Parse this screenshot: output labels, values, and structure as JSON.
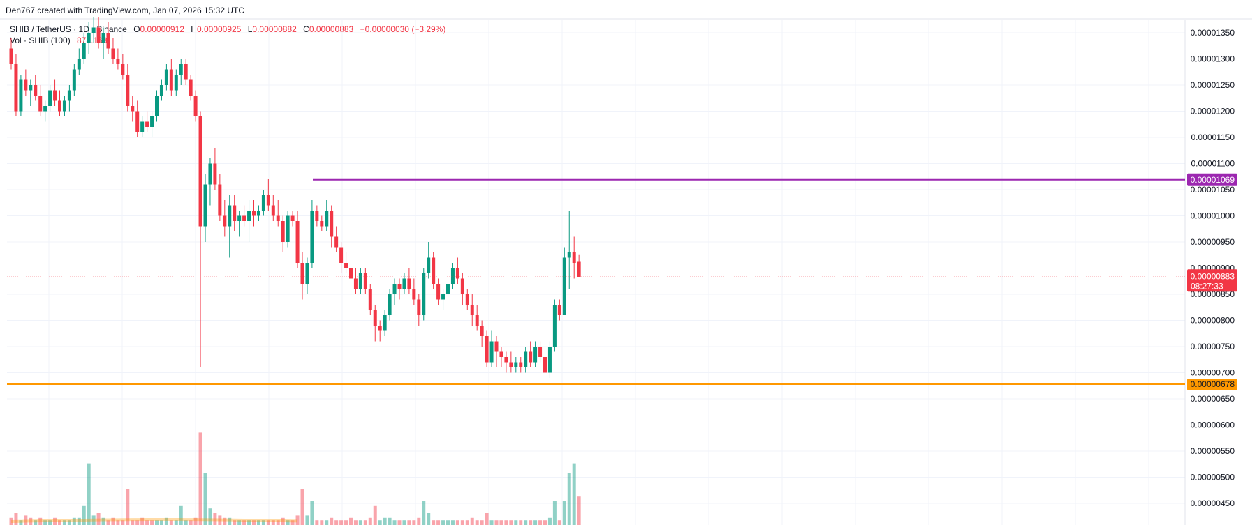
{
  "credit": "Den767 created with TradingView.com, Jan 07, 2026 15:32 UTC",
  "header": {
    "symbol": "SHIB / TetherUS · 1D · Binance",
    "o_key": "O",
    "o_val": "0.00000912",
    "h_key": "H",
    "h_val": "0.00000925",
    "l_key": "L",
    "l_val": "0.00000882",
    "c_key": "C",
    "c_val": "0.00000883",
    "change": "−0.00000030 (−3.29%)"
  },
  "volume_label": {
    "name": "Vol · SHIB (100)",
    "value": "878.168"
  },
  "colors": {
    "up": "#089981",
    "down": "#f23645",
    "resistance": "#9c27b0",
    "support": "#ff9800",
    "grid": "#f0f3fa"
  },
  "chart_data": {
    "type": "candlestick",
    "ylim": [
      4.3e-06,
      1.37e-05
    ],
    "y_ticks": [
      "0.00001350",
      "0.00001300",
      "0.00001250",
      "0.00001200",
      "0.00001150",
      "0.00001100",
      "0.00001050",
      "0.00001000",
      "0.00000950",
      "0.00000900",
      "0.00000850",
      "0.00000800",
      "0.00000750",
      "0.00000700",
      "0.00000650",
      "0.00000600",
      "0.00000550",
      "0.00000500",
      "0.00000450"
    ],
    "y_tick_values": [
      1.35e-05,
      1.3e-05,
      1.25e-05,
      1.2e-05,
      1.15e-05,
      1.1e-05,
      1.05e-05,
      1e-05,
      9.5e-06,
      9e-06,
      8.5e-06,
      8e-06,
      7.5e-06,
      7e-06,
      6.5e-06,
      6e-06,
      5.5e-06,
      5e-06,
      4.5e-06
    ],
    "candles": [
      [
        13.2,
        13.4,
        12.8,
        12.9
      ],
      [
        12.9,
        13.1,
        11.9,
        12.0
      ],
      [
        12.0,
        12.7,
        11.9,
        12.6
      ],
      [
        12.6,
        12.8,
        12.3,
        12.4
      ],
      [
        12.4,
        12.6,
        12.1,
        12.5
      ],
      [
        12.5,
        12.7,
        12.2,
        12.3
      ],
      [
        12.3,
        12.5,
        11.9,
        12.0
      ],
      [
        12.0,
        12.2,
        11.8,
        12.1
      ],
      [
        12.1,
        12.5,
        12.0,
        12.4
      ],
      [
        12.4,
        12.6,
        12.1,
        12.2
      ],
      [
        12.2,
        12.4,
        11.9,
        12.0
      ],
      [
        12.0,
        12.3,
        11.9,
        12.2
      ],
      [
        12.2,
        12.5,
        12.0,
        12.4
      ],
      [
        12.4,
        12.9,
        12.3,
        12.8
      ],
      [
        12.8,
        13.2,
        12.7,
        13.0
      ],
      [
        13.0,
        13.5,
        12.9,
        13.3
      ],
      [
        13.3,
        13.7,
        13.1,
        13.5
      ],
      [
        13.5,
        13.8,
        13.3,
        13.6
      ],
      [
        13.6,
        13.8,
        13.2,
        13.3
      ],
      [
        13.3,
        13.6,
        13.0,
        13.5
      ],
      [
        13.5,
        13.7,
        13.1,
        13.2
      ],
      [
        13.2,
        13.4,
        12.9,
        13.0
      ],
      [
        13.0,
        13.2,
        12.8,
        12.9
      ],
      [
        12.9,
        13.1,
        12.6,
        12.7
      ],
      [
        12.7,
        12.9,
        12.0,
        12.1
      ],
      [
        12.1,
        12.3,
        11.8,
        12.0
      ],
      [
        12.0,
        12.2,
        11.5,
        11.6
      ],
      [
        11.6,
        11.9,
        11.5,
        11.8
      ],
      [
        11.8,
        12.0,
        11.6,
        11.7
      ],
      [
        11.7,
        12.0,
        11.5,
        11.9
      ],
      [
        11.9,
        12.4,
        11.8,
        12.3
      ],
      [
        12.3,
        12.6,
        12.2,
        12.5
      ],
      [
        12.5,
        12.9,
        12.4,
        12.8
      ],
      [
        12.8,
        13.0,
        12.3,
        12.4
      ],
      [
        12.4,
        12.8,
        12.3,
        12.7
      ],
      [
        12.7,
        13.0,
        12.5,
        12.9
      ],
      [
        12.9,
        13.0,
        12.5,
        12.6
      ],
      [
        12.6,
        12.7,
        12.2,
        12.3
      ],
      [
        12.3,
        12.4,
        11.8,
        11.9
      ],
      [
        11.9,
        12.0,
        7.1,
        9.8
      ],
      [
        9.8,
        10.8,
        9.5,
        10.6
      ],
      [
        10.6,
        11.1,
        10.2,
        11.0
      ],
      [
        11.0,
        11.3,
        10.5,
        10.6
      ],
      [
        10.6,
        10.8,
        9.9,
        10.0
      ],
      [
        10.0,
        10.3,
        9.6,
        9.8
      ],
      [
        9.8,
        10.4,
        9.2,
        10.2
      ],
      [
        10.2,
        10.4,
        9.7,
        9.9
      ],
      [
        9.9,
        10.1,
        9.6,
        10.0
      ],
      [
        10.0,
        10.2,
        9.8,
        9.9
      ],
      [
        9.9,
        10.3,
        9.5,
        10.1
      ],
      [
        10.1,
        10.3,
        9.8,
        10.0
      ],
      [
        10.0,
        10.2,
        9.9,
        10.1
      ],
      [
        10.1,
        10.5,
        10.0,
        10.4
      ],
      [
        10.4,
        10.7,
        10.1,
        10.2
      ],
      [
        10.2,
        10.4,
        9.9,
        10.0
      ],
      [
        10.0,
        10.3,
        9.8,
        9.9
      ],
      [
        9.9,
        10.0,
        9.3,
        9.5
      ],
      [
        9.5,
        10.1,
        9.4,
        10.0
      ],
      [
        10.0,
        10.1,
        9.8,
        9.9
      ],
      [
        9.9,
        10.1,
        9.0,
        9.1
      ],
      [
        9.1,
        9.3,
        8.4,
        8.7
      ],
      [
        8.7,
        9.2,
        8.5,
        9.1
      ],
      [
        9.1,
        10.3,
        9.0,
        10.1
      ],
      [
        10.1,
        10.2,
        9.8,
        9.9
      ],
      [
        9.9,
        10.0,
        9.7,
        9.8
      ],
      [
        9.8,
        10.3,
        9.7,
        10.1
      ],
      [
        10.1,
        10.2,
        9.4,
        9.6
      ],
      [
        9.6,
        9.8,
        9.3,
        9.4
      ],
      [
        9.4,
        9.5,
        8.9,
        9.1
      ],
      [
        9.1,
        9.3,
        8.9,
        9.0
      ],
      [
        9.0,
        9.3,
        8.7,
        8.8
      ],
      [
        8.8,
        9.0,
        8.5,
        8.6
      ],
      [
        8.6,
        9.0,
        8.5,
        8.9
      ],
      [
        8.9,
        9.0,
        8.5,
        8.6
      ],
      [
        8.6,
        8.7,
        8.1,
        8.2
      ],
      [
        8.2,
        8.3,
        7.6,
        7.9
      ],
      [
        7.9,
        8.0,
        7.6,
        7.8
      ],
      [
        7.8,
        8.2,
        7.7,
        8.1
      ],
      [
        8.1,
        8.6,
        8.0,
        8.5
      ],
      [
        8.5,
        8.8,
        8.3,
        8.7
      ],
      [
        8.7,
        8.8,
        8.4,
        8.6
      ],
      [
        8.6,
        8.9,
        8.5,
        8.8
      ],
      [
        8.8,
        9.0,
        8.5,
        8.6
      ],
      [
        8.6,
        8.8,
        8.3,
        8.4
      ],
      [
        8.4,
        8.5,
        7.9,
        8.1
      ],
      [
        8.1,
        9.0,
        8.0,
        8.9
      ],
      [
        8.9,
        9.5,
        8.8,
        9.2
      ],
      [
        9.2,
        9.3,
        8.6,
        8.7
      ],
      [
        8.7,
        8.8,
        8.3,
        8.4
      ],
      [
        8.4,
        8.6,
        8.2,
        8.5
      ],
      [
        8.5,
        8.8,
        8.3,
        8.7
      ],
      [
        8.7,
        9.1,
        8.6,
        9.0
      ],
      [
        9.0,
        9.2,
        8.7,
        8.8
      ],
      [
        8.8,
        8.9,
        8.3,
        8.5
      ],
      [
        8.5,
        8.6,
        8.2,
        8.3
      ],
      [
        8.3,
        8.5,
        7.9,
        8.1
      ],
      [
        8.1,
        8.3,
        7.8,
        7.9
      ],
      [
        7.9,
        8.0,
        7.5,
        7.7
      ],
      [
        7.7,
        7.8,
        7.1,
        7.2
      ],
      [
        7.2,
        7.8,
        7.1,
        7.6
      ],
      [
        7.6,
        7.7,
        7.1,
        7.4
      ],
      [
        7.4,
        7.5,
        7.1,
        7.3
      ],
      [
        7.3,
        7.4,
        7.0,
        7.2
      ],
      [
        7.2,
        7.4,
        7.0,
        7.1
      ],
      [
        7.1,
        7.3,
        7.0,
        7.2
      ],
      [
        7.2,
        7.3,
        7.0,
        7.1
      ],
      [
        7.1,
        7.5,
        7.0,
        7.4
      ],
      [
        7.4,
        7.6,
        7.1,
        7.2
      ],
      [
        7.2,
        7.6,
        7.1,
        7.5
      ],
      [
        7.5,
        7.6,
        7.2,
        7.3
      ],
      [
        7.3,
        7.4,
        6.9,
        7.0
      ],
      [
        7.0,
        7.6,
        6.9,
        7.5
      ],
      [
        7.5,
        8.4,
        7.4,
        8.3
      ],
      [
        8.3,
        8.4,
        8.0,
        8.1
      ],
      [
        8.1,
        9.4,
        8.1,
        9.2
      ],
      [
        9.2,
        10.1,
        8.6,
        9.3
      ],
      [
        9.3,
        9.6,
        8.8,
        9.1
      ],
      [
        9.12,
        9.25,
        8.82,
        8.83
      ]
    ],
    "volumes": [
      [
        0.3,
        0
      ],
      [
        0.5,
        0
      ],
      [
        0.2,
        1
      ],
      [
        0.4,
        0
      ],
      [
        0.3,
        0
      ],
      [
        0.2,
        1
      ],
      [
        0.3,
        0
      ],
      [
        0.2,
        1
      ],
      [
        0.2,
        1
      ],
      [
        0.3,
        0
      ],
      [
        0.2,
        0
      ],
      [
        0.2,
        1
      ],
      [
        0.2,
        1
      ],
      [
        0.3,
        1
      ],
      [
        0.3,
        1
      ],
      [
        0.8,
        1
      ],
      [
        2.6,
        1
      ],
      [
        0.4,
        1
      ],
      [
        0.5,
        0
      ],
      [
        0.3,
        1
      ],
      [
        0.2,
        0
      ],
      [
        0.3,
        0
      ],
      [
        0.2,
        0
      ],
      [
        0.2,
        0
      ],
      [
        1.5,
        0
      ],
      [
        0.2,
        0
      ],
      [
        0.2,
        0
      ],
      [
        0.3,
        0
      ],
      [
        0.2,
        0
      ],
      [
        0.2,
        0
      ],
      [
        0.2,
        1
      ],
      [
        0.2,
        1
      ],
      [
        0.3,
        1
      ],
      [
        0.2,
        0
      ],
      [
        0.2,
        1
      ],
      [
        0.8,
        1
      ],
      [
        0.2,
        1
      ],
      [
        0.2,
        0
      ],
      [
        0.3,
        0
      ],
      [
        3.9,
        0
      ],
      [
        2.2,
        1
      ],
      [
        0.7,
        1
      ],
      [
        0.5,
        0
      ],
      [
        0.4,
        0
      ],
      [
        0.3,
        0
      ],
      [
        0.3,
        1
      ],
      [
        0.2,
        0
      ],
      [
        0.2,
        1
      ],
      [
        0.2,
        0
      ],
      [
        0.2,
        1
      ],
      [
        0.2,
        0
      ],
      [
        0.2,
        1
      ],
      [
        0.2,
        1
      ],
      [
        0.2,
        0
      ],
      [
        0.2,
        0
      ],
      [
        0.2,
        0
      ],
      [
        0.3,
        0
      ],
      [
        0.2,
        1
      ],
      [
        0.2,
        0
      ],
      [
        0.4,
        0
      ],
      [
        1.5,
        0
      ],
      [
        0.4,
        1
      ],
      [
        1.0,
        1
      ],
      [
        0.2,
        0
      ],
      [
        0.2,
        0
      ],
      [
        0.2,
        1
      ],
      [
        0.3,
        0
      ],
      [
        0.2,
        0
      ],
      [
        0.2,
        0
      ],
      [
        0.2,
        0
      ],
      [
        0.3,
        0
      ],
      [
        0.2,
        0
      ],
      [
        0.2,
        1
      ],
      [
        0.2,
        0
      ],
      [
        0.3,
        0
      ],
      [
        0.8,
        0
      ],
      [
        0.2,
        1
      ],
      [
        0.3,
        1
      ],
      [
        0.3,
        1
      ],
      [
        0.2,
        1
      ],
      [
        0.2,
        0
      ],
      [
        0.2,
        1
      ],
      [
        0.2,
        0
      ],
      [
        0.2,
        0
      ],
      [
        0.3,
        0
      ],
      [
        1.0,
        1
      ],
      [
        0.5,
        1
      ],
      [
        0.2,
        0
      ],
      [
        0.2,
        0
      ],
      [
        0.2,
        1
      ],
      [
        0.2,
        1
      ],
      [
        0.2,
        1
      ],
      [
        0.2,
        0
      ],
      [
        0.2,
        0
      ],
      [
        0.2,
        0
      ],
      [
        0.3,
        0
      ],
      [
        0.2,
        0
      ],
      [
        0.2,
        0
      ],
      [
        0.5,
        0
      ],
      [
        0.2,
        1
      ],
      [
        0.2,
        0
      ],
      [
        0.2,
        0
      ],
      [
        0.2,
        0
      ],
      [
        0.2,
        0
      ],
      [
        0.2,
        1
      ],
      [
        0.2,
        0
      ],
      [
        0.2,
        1
      ],
      [
        0.2,
        0
      ],
      [
        0.2,
        1
      ],
      [
        0.2,
        0
      ],
      [
        0.2,
        0
      ],
      [
        0.3,
        1
      ],
      [
        1.0,
        1
      ],
      [
        0.2,
        0
      ],
      [
        1.0,
        1
      ],
      [
        2.2,
        1
      ],
      [
        2.6,
        1
      ],
      [
        1.2,
        0
      ]
    ],
    "resistance_level": 1.069e-05,
    "resistance_label": "0.00001069",
    "support_level": 6.78e-06,
    "support_label": "0.00000678",
    "last_price": 8.83e-06,
    "last_price_label": "0.00000883",
    "countdown": "08:27:33"
  }
}
